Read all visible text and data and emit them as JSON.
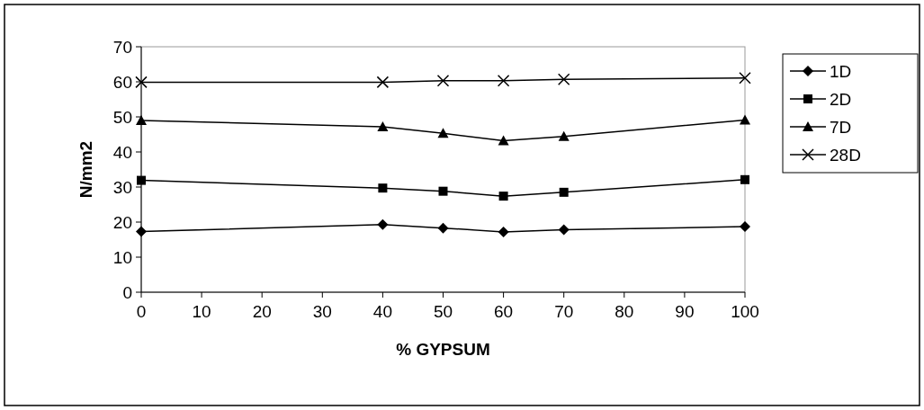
{
  "chart_data": {
    "type": "line",
    "xlabel": "% GYPSUM",
    "ylabel": "N/mm2",
    "x": [
      0,
      40,
      50,
      60,
      70,
      100
    ],
    "series": [
      {
        "name": "1D",
        "color": "#000000",
        "marker": "diamond",
        "values": [
          17.3,
          19.3,
          18.3,
          17.2,
          17.8,
          18.7
        ]
      },
      {
        "name": "2D",
        "color": "#000000",
        "marker": "square",
        "values": [
          31.9,
          29.7,
          28.8,
          27.4,
          28.5,
          32.1
        ]
      },
      {
        "name": "7D",
        "color": "#000000",
        "marker": "triangle",
        "values": [
          49,
          47.2,
          45.3,
          43.2,
          44.4,
          49.1
        ]
      },
      {
        "name": "28D",
        "color": "#000000",
        "marker": "cross",
        "values": [
          59.9,
          59.9,
          60.3,
          60.3,
          60.7,
          61.1
        ]
      }
    ],
    "xlim": [
      0,
      100
    ],
    "xticks": [
      0,
      10,
      20,
      30,
      40,
      50,
      60,
      70,
      80,
      90,
      100
    ],
    "ylim": [
      0,
      70
    ],
    "yticks": [
      0,
      10,
      20,
      30,
      40,
      50,
      60,
      70
    ],
    "grid": false,
    "legend": "right",
    "line_style": "solid"
  }
}
